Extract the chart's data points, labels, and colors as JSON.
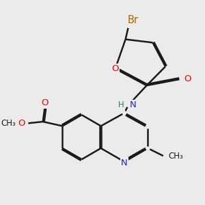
{
  "bg_color": "#ebebeb",
  "bond_color": "#1a1a1a",
  "bond_width": 1.8,
  "dbo": 0.12,
  "atom_colors": {
    "O": "#ee0000",
    "N": "#2222cc",
    "Br": "#aa6600",
    "H": "#337777",
    "C": "#1a1a1a"
  },
  "font_size": 9.5,
  "figsize": [
    3.0,
    3.0
  ],
  "dpi": 100
}
